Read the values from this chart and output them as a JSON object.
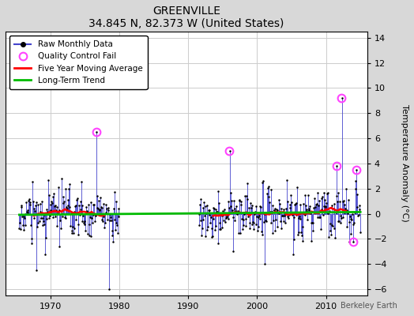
{
  "title": "GREENVILLE",
  "subtitle": "34.845 N, 82.373 W (United States)",
  "ylabel": "Temperature Anomaly (°C)",
  "watermark": "Berkeley Earth",
  "ylim": [
    -6.5,
    14.5
  ],
  "xlim": [
    1963.5,
    2016
  ],
  "yticks": [
    -6,
    -4,
    -2,
    0,
    2,
    4,
    6,
    8,
    10,
    12,
    14
  ],
  "xticks": [
    1970,
    1980,
    1990,
    2000,
    2010
  ],
  "fig_bg_color": "#d8d8d8",
  "plot_bg_color": "#ffffff",
  "raw_line_color": "#4444cc",
  "raw_marker_color": "#000000",
  "qc_fail_color": "#ff44ff",
  "moving_avg_color": "#ff0000",
  "trend_color": "#00bb00",
  "seed": 17,
  "years_start": 1964,
  "years_end": 2015,
  "gap1_start": 1980.0,
  "gap1_end": 1991.5,
  "gap2_start": 1963.5,
  "gap2_end": 1965.5,
  "noise_std": 1.5,
  "autocorr": 0.35,
  "spike_1976_t": 1976.7,
  "spike_1976_v": 6.5,
  "spike_2012_t": 2012.25,
  "spike_2012_v": 9.2,
  "spike_1996_t": 1996.0,
  "spike_1996_v": 5.0,
  "qc_times": [
    1976.7,
    1996.0,
    2012.25,
    2011.5,
    2013.9,
    2014.4
  ],
  "qc_vals_override": [
    6.5,
    5.0,
    9.2,
    null,
    null,
    null
  ],
  "trend_slope": -0.012,
  "trend_intercept": 24.0
}
